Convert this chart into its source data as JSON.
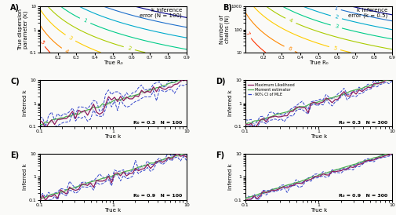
{
  "title_A": "k inference\nerror (N = 100)",
  "title_B": "k inference\nerror (k = 0.5)",
  "label_A": "A)",
  "label_B": "B)",
  "label_C": "C)",
  "label_D": "D)",
  "label_E": "E)",
  "label_F": "F)",
  "xlabel_AB": "True R₀",
  "ylabel_A": "True dispersion\nparameter (k)",
  "ylabel_B": "Number of\nchains (N)",
  "xlabel_CDEF": "True k",
  "ylabel_CDEF": "Inferred k",
  "annot_C": "R₀ = 0.3   N = 100",
  "annot_D": "R₀ = 0.3   N = 300",
  "annot_E": "R₀ = 0.9   N = 100",
  "annot_F": "R₀ = 0.9   N = 300",
  "legend_labels": [
    "Maximum Likelihood",
    "Moment estimator",
    "90% CI of MLE"
  ],
  "legend_colors": [
    "#8B1A5E",
    "#4CAF50",
    "#3344CC"
  ],
  "bg_color": "#FAFAF8",
  "contour_colors_AB": [
    "#00008B",
    "#1E6FCC",
    "#00AACC",
    "#00CC88",
    "#AACC00",
    "#FFCC00",
    "#FF8800",
    "#FF3300",
    "#CC0000"
  ],
  "contour_labels_A": [
    "1",
    "2",
    "3",
    "4",
    "5"
  ],
  "contour_labels_B": [
    "1",
    "2",
    "3",
    "4",
    "5",
    "6",
    "7"
  ]
}
